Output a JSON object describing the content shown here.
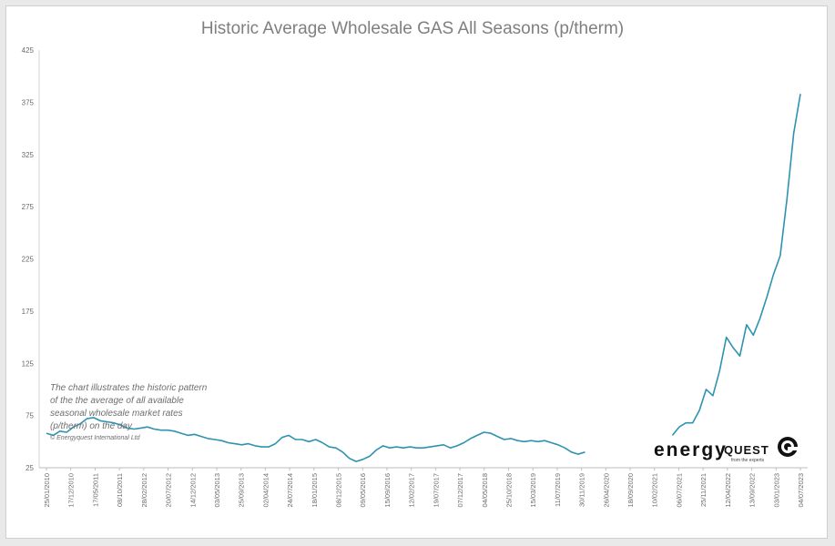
{
  "chart_data": {
    "type": "line",
    "title": "Historic Average Wholesale GAS All Seasons (p/therm)",
    "ylim": [
      25,
      425
    ],
    "yticks": [
      25,
      75,
      125,
      175,
      225,
      275,
      325,
      375,
      425
    ],
    "grid": false,
    "xticks": [
      "25/01/2010",
      "17/12/2010",
      "17/05/2011",
      "08/10/2011",
      "28/02/2012",
      "20/07/2012",
      "14/12/2012",
      "03/05/2013",
      "25/09/2013",
      "02/04/2014",
      "24/07/2014",
      "18/01/2015",
      "08/12/2015",
      "09/05/2016",
      "15/09/2016",
      "12/02/2017",
      "19/07/2017",
      "07/12/2017",
      "04/05/2018",
      "25/10/2018",
      "15/03/2019",
      "11/07/2019",
      "30/11/2019",
      "26/04/2020",
      "18/09/2020",
      "10/02/2021",
      "06/07/2021",
      "25/11/2021",
      "12/04/2022",
      "13/09/2022",
      "03/01/2023",
      "04/07/2023"
    ],
    "series": [
      {
        "color": "#2e93b0",
        "segments": [
          [
            [
              0,
              58
            ],
            [
              1,
              56
            ],
            [
              2,
              60
            ],
            [
              3,
              59
            ],
            [
              4,
              64
            ],
            [
              5,
              67
            ],
            [
              6,
              72
            ],
            [
              7,
              73
            ],
            [
              8,
              70
            ],
            [
              9,
              69
            ],
            [
              10,
              68
            ],
            [
              11,
              66
            ],
            [
              12,
              63
            ],
            [
              13,
              62
            ],
            [
              14,
              63
            ],
            [
              15,
              64
            ],
            [
              16,
              62
            ],
            [
              17,
              61
            ],
            [
              18,
              61
            ],
            [
              19,
              60
            ],
            [
              20,
              58
            ],
            [
              21,
              56
            ],
            [
              22,
              57
            ],
            [
              23,
              55
            ],
            [
              24,
              53
            ],
            [
              25,
              52
            ],
            [
              26,
              51
            ],
            [
              27,
              49
            ],
            [
              28,
              48
            ],
            [
              29,
              47
            ],
            [
              30,
              48
            ],
            [
              31,
              46
            ],
            [
              32,
              45
            ],
            [
              33,
              45
            ],
            [
              34,
              48
            ],
            [
              35,
              54
            ],
            [
              36,
              56
            ],
            [
              37,
              52
            ],
            [
              38,
              52
            ],
            [
              39,
              50
            ],
            [
              40,
              52
            ],
            [
              41,
              49
            ],
            [
              42,
              45
            ],
            [
              43,
              44
            ],
            [
              44,
              40
            ],
            [
              45,
              34
            ],
            [
              46,
              31
            ],
            [
              47,
              33
            ],
            [
              48,
              36
            ],
            [
              49,
              42
            ],
            [
              50,
              46
            ],
            [
              51,
              44
            ],
            [
              52,
              45
            ],
            [
              53,
              44
            ],
            [
              54,
              45
            ],
            [
              55,
              44
            ],
            [
              56,
              44
            ],
            [
              57,
              45
            ],
            [
              58,
              46
            ],
            [
              59,
              47
            ],
            [
              60,
              44
            ],
            [
              61,
              46
            ],
            [
              62,
              49
            ],
            [
              63,
              53
            ],
            [
              64,
              56
            ],
            [
              65,
              59
            ],
            [
              66,
              58
            ],
            [
              67,
              55
            ],
            [
              68,
              52
            ],
            [
              69,
              53
            ],
            [
              70,
              51
            ],
            [
              71,
              50
            ],
            [
              72,
              51
            ],
            [
              73,
              50
            ],
            [
              74,
              51
            ],
            [
              75,
              49
            ],
            [
              76,
              47
            ],
            [
              77,
              44
            ],
            [
              78,
              40
            ],
            [
              79,
              38
            ],
            [
              80,
              40
            ]
          ],
          [
            [
              93,
              56
            ],
            [
              94,
              64
            ],
            [
              95,
              68
            ],
            [
              96,
              68
            ],
            [
              97,
              80
            ],
            [
              98,
              100
            ],
            [
              99,
              94
            ],
            [
              100,
              118
            ],
            [
              101,
              150
            ],
            [
              102,
              140
            ],
            [
              103,
              132
            ],
            [
              104,
              162
            ],
            [
              105,
              152
            ],
            [
              106,
              168
            ],
            [
              107,
              188
            ],
            [
              108,
              210
            ],
            [
              109,
              228
            ],
            [
              110,
              282
            ],
            [
              111,
              345
            ],
            [
              112,
              383
            ]
          ]
        ]
      }
    ]
  },
  "annotation": {
    "lines": [
      "The chart illustrates the historic pattern",
      "of the the average of all available",
      "seasonal wholesale market rates",
      "(p/therm) on the day"
    ],
    "copyright": "© Energyquest International Ltd"
  },
  "logo": {
    "name_main": "energy",
    "name_quest": "QUEST",
    "tagline": "from the experts"
  },
  "colors": {
    "line": "#2e93b0",
    "title": "#7f7f7f"
  }
}
